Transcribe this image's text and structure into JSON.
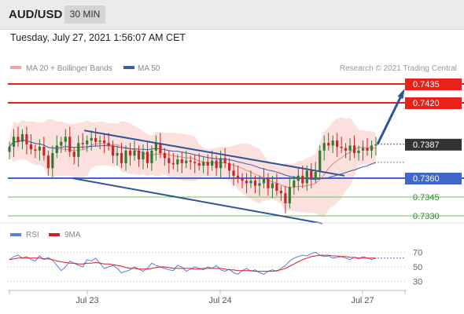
{
  "header": {
    "symbol": "AUD/USD",
    "timeframe": "30 MIN",
    "datetime": "Tuesday, July 27, 2021 1:56:07 AM CET"
  },
  "legend": {
    "ma20": "MA 20 + Bollinger Bands",
    "ma50": "MA 50",
    "copyright": "Research © 2021 Trading Central"
  },
  "colors": {
    "resistance": "#e8211a",
    "support_pivot": "#3f67c9",
    "support": "#6fbf5e",
    "ma20": "#f08080",
    "ma50": "#3b5ea6",
    "bollinger_fill": "#fbe0dd",
    "channel": "#2f5597",
    "bull_candle": "#2e7d32",
    "bear_candle": "#c62828",
    "rsi": "#5b7fd6",
    "rsi_ma": "#d32020",
    "last_price_bg": "#333333"
  },
  "chart_data": [
    {
      "type": "candlestick",
      "title": "AUD/USD 30 MIN",
      "x_ticks": [
        "Jul 23",
        "Jul 24",
        "Jul 27"
      ],
      "ylim": [
        0.7325,
        0.744
      ],
      "last_price": 0.7387,
      "levels": [
        {
          "value": 0.7435,
          "label": "0.7435",
          "kind": "resistance"
        },
        {
          "value": 0.742,
          "label": "0.7420",
          "kind": "resistance"
        },
        {
          "value": 0.736,
          "label": "0.7360",
          "kind": "pivot"
        },
        {
          "value": 0.7345,
          "label": "0.7345",
          "kind": "support"
        },
        {
          "value": 0.733,
          "label": "0.7330",
          "kind": "support"
        }
      ],
      "series": [
        {
          "name": "MA 20 + Bollinger Bands",
          "kind": "ma20"
        },
        {
          "name": "MA 50",
          "kind": "ma50"
        }
      ],
      "price_path": [
        0.7385,
        0.7393,
        0.7389,
        0.7395,
        0.7387,
        0.7383,
        0.7382,
        0.7385,
        0.7378,
        0.7368,
        0.738,
        0.7386,
        0.7389,
        0.7393,
        0.7381,
        0.7377,
        0.7388,
        0.7387,
        0.739,
        0.7392,
        0.7389,
        0.739,
        0.7388,
        0.7386,
        0.7378,
        0.738,
        0.7372,
        0.7382,
        0.7378,
        0.7382,
        0.7375,
        0.7381,
        0.7372,
        0.7382,
        0.7388,
        0.738,
        0.7376,
        0.7372,
        0.7371,
        0.7375,
        0.7372,
        0.7374,
        0.7373,
        0.7372,
        0.737,
        0.7373,
        0.737,
        0.7374,
        0.7368,
        0.7376,
        0.7372,
        0.7366,
        0.7362,
        0.736,
        0.7358,
        0.7356,
        0.7358,
        0.7354,
        0.7356,
        0.736,
        0.7352,
        0.7356,
        0.735,
        0.7348,
        0.734,
        0.7353,
        0.7358,
        0.7362,
        0.7356,
        0.7366,
        0.736,
        0.7365,
        0.7382,
        0.7388,
        0.7386,
        0.739,
        0.7385,
        0.7384,
        0.7382,
        0.7386,
        0.738,
        0.7382,
        0.7384,
        0.7382,
        0.7386,
        0.7387
      ],
      "channel_lines": [
        {
          "from": [
            "Jul 22",
            0.7398
          ],
          "to": [
            "Jul 26",
            0.7362
          ]
        },
        {
          "from": [
            "Jul 22",
            0.736
          ],
          "to": [
            "Jul 26",
            0.7324
          ]
        }
      ],
      "projection": {
        "from": 0.7387,
        "to": 0.7428
      }
    },
    {
      "type": "line",
      "title": "RSI",
      "series": [
        {
          "name": "RSI"
        },
        {
          "name": "9MA"
        }
      ],
      "yticks": [
        70,
        50,
        30
      ],
      "ylim": [
        20,
        80
      ],
      "rsi": [
        60,
        64,
        66,
        62,
        64,
        60,
        58,
        65,
        60,
        63,
        59,
        52,
        45,
        50,
        58,
        55,
        52,
        50,
        60,
        58,
        62,
        55,
        48,
        50,
        52,
        48,
        42,
        44,
        46,
        50,
        47,
        44,
        48,
        55,
        52,
        50,
        48,
        46,
        45,
        52,
        50,
        44,
        47,
        50,
        48,
        46,
        50,
        48,
        52,
        46,
        44,
        47,
        42,
        40,
        45,
        48,
        44,
        46,
        42,
        40,
        44,
        46,
        44,
        48,
        52,
        58,
        62,
        64,
        66,
        65,
        68,
        70,
        66,
        64,
        65,
        62,
        63,
        64,
        62,
        60,
        63,
        61,
        64,
        62,
        60,
        62
      ],
      "ma9": [
        60,
        61,
        62,
        62,
        62,
        62,
        62,
        62,
        61,
        61,
        60,
        58,
        57,
        56,
        55,
        55,
        54,
        54,
        55,
        55,
        56,
        55,
        54,
        54,
        53,
        52,
        51,
        49,
        48,
        48,
        47,
        47,
        47,
        48,
        49,
        50,
        50,
        49,
        48,
        48,
        48,
        48,
        48,
        47,
        47,
        48,
        48,
        48,
        48,
        48,
        47,
        46,
        46,
        45,
        45,
        45,
        45,
        44,
        44,
        44,
        44,
        44,
        45,
        46,
        48,
        51,
        54,
        57,
        60,
        62,
        64,
        65,
        66,
        66,
        66,
        65,
        65,
        64,
        64,
        63,
        63,
        62,
        62,
        62,
        62,
        62
      ]
    }
  ]
}
